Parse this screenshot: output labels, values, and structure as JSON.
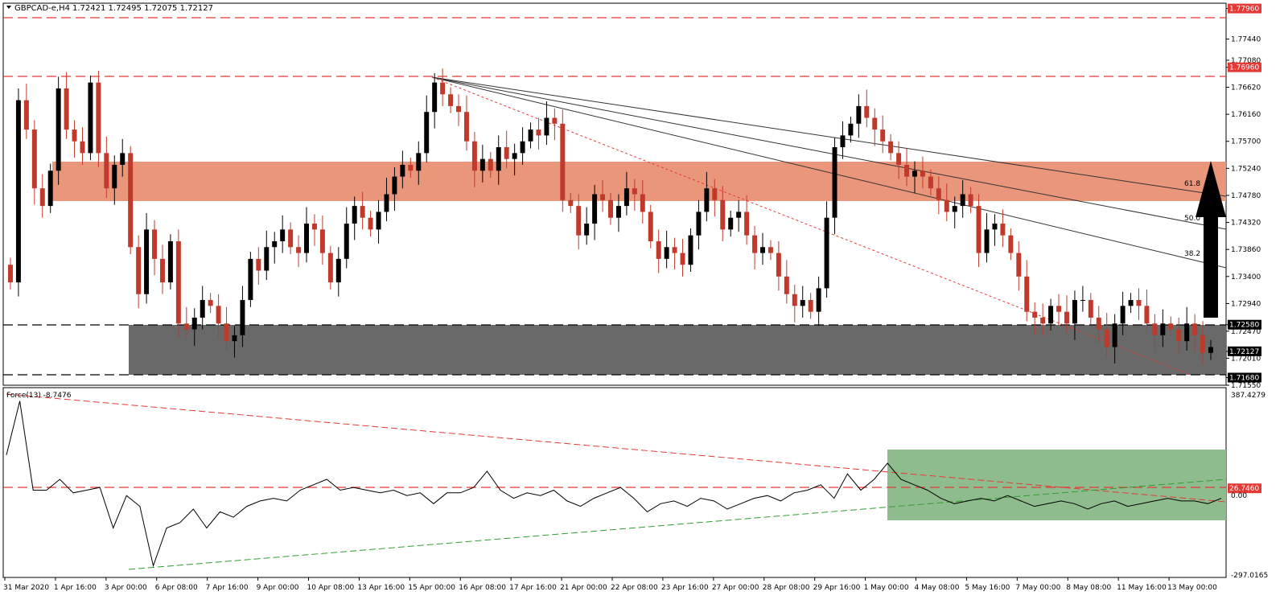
{
  "header": {
    "symbol_label": "GBPCAD-e,H4",
    "ohlc": "1.72421 1.72495 1.72075 1.72127"
  },
  "indicator": {
    "label": "Force(13) -8.7476"
  },
  "colors": {
    "bull": "#000000",
    "bear": "#c0392b",
    "resistance_zone": "#e9967a",
    "support_zone": "#696969",
    "level_line": "#e53935",
    "force_zone": "#8fbc8f",
    "force_trend_up": "#2e9e2e"
  },
  "chart_data": [
    {
      "type": "candlestick",
      "ylim": [
        1.7155,
        1.7805
      ],
      "price_ticks": [
        "1.77960",
        "1.77440",
        "1.77080",
        "1.76960",
        "1.76620",
        "1.76160",
        "1.75700",
        "1.75240",
        "1.74780",
        "1.74320",
        "1.73860",
        "1.73400",
        "1.72940",
        "1.72580",
        "1.72470",
        "1.72127",
        "1.72010",
        "1.71680",
        "1.71550"
      ],
      "x_labels": [
        "31 Mar 2020",
        "1 Apr 16:00",
        "3 Apr 00:00",
        "6 Apr 08:00",
        "7 Apr 16:00",
        "9 Apr 00:00",
        "10 Apr 08:00",
        "13 Apr 16:00",
        "15 Apr 00:00",
        "16 Apr 08:00",
        "17 Apr 16:00",
        "21 Apr 00:00",
        "22 Apr 08:00",
        "23 Apr 16:00",
        "27 Apr 00:00",
        "28 Apr 08:00",
        "29 Apr 16:00",
        "1 May 00:00",
        "4 May 08:00",
        "5 May 16:00",
        "7 May 00:00",
        "8 May 08:00",
        "11 May 16:00",
        "13 May 00:00"
      ],
      "levels": [
        {
          "label": "1.77960",
          "value": 1.7796
        },
        {
          "label": "1.76960",
          "value": 1.7696
        },
        {
          "label": "1.72580",
          "value": 1.7258
        },
        {
          "label": "1.71680",
          "value": 1.7168
        }
      ],
      "current_price": {
        "label": "1.72127",
        "value": 1.72127
      },
      "resistance_zone": [
        1.7478,
        1.7551
      ],
      "support_zone": [
        1.7168,
        1.7258
      ],
      "fib_labels": [
        "61.8",
        "50.0",
        "38.2"
      ],
      "closes": [
        1.733,
        1.764,
        1.759,
        1.749,
        1.746,
        1.752,
        1.766,
        1.759,
        1.757,
        1.755,
        1.767,
        1.755,
        1.749,
        1.753,
        1.755,
        1.739,
        1.731,
        1.742,
        1.737,
        1.733,
        1.74,
        1.726,
        1.725,
        1.727,
        1.73,
        1.729,
        1.726,
        1.723,
        1.724,
        1.73,
        1.737,
        1.735,
        1.739,
        1.74,
        1.742,
        1.739,
        1.738,
        1.743,
        1.742,
        1.738,
        1.733,
        1.737,
        1.743,
        1.746,
        1.744,
        1.742,
        1.745,
        1.748,
        1.751,
        1.753,
        1.752,
        1.755,
        1.762,
        1.767,
        1.765,
        1.763,
        1.762,
        1.757,
        1.752,
        1.754,
        1.752,
        1.756,
        1.754,
        1.755,
        1.757,
        1.759,
        1.758,
        1.761,
        1.76,
        1.747,
        1.746,
        1.741,
        1.743,
        1.748,
        1.747,
        1.744,
        1.746,
        1.749,
        1.748,
        1.745,
        1.74,
        1.737,
        1.739,
        1.738,
        1.736,
        1.741,
        1.745,
        1.749,
        1.747,
        1.742,
        1.744,
        1.745,
        1.741,
        1.738,
        1.739,
        1.738,
        1.734,
        1.731,
        1.729,
        1.73,
        1.728,
        1.732,
        1.744,
        1.756,
        1.758,
        1.76,
        1.763,
        1.761,
        1.759,
        1.757,
        1.755,
        1.753,
        1.751,
        1.752,
        1.751,
        1.749,
        1.747,
        1.745,
        1.746,
        1.748,
        1.746,
        1.738,
        1.742,
        1.743,
        1.741,
        1.738,
        1.734,
        1.728,
        1.727,
        1.726,
        1.729,
        1.728,
        1.726,
        1.73,
        1.73,
        1.727,
        1.725,
        1.722,
        1.726,
        1.729,
        1.73,
        1.729,
        1.726,
        1.724,
        1.726,
        1.725,
        1.723,
        1.726,
        1.724,
        1.721,
        1.722
      ]
    },
    {
      "type": "line",
      "name": "Force(13)",
      "ylim": [
        -297.0,
        387.4279
      ],
      "y_ticks": [
        "387.4279",
        "26.7460",
        "0.00",
        "-297.0165"
      ],
      "level": {
        "label": "26.7460",
        "value": 26.746
      },
      "values": [
        150,
        350,
        20,
        20,
        60,
        10,
        20,
        30,
        -120,
        0,
        -40,
        -260,
        -120,
        -100,
        -50,
        -120,
        -60,
        -80,
        -40,
        -20,
        -10,
        -20,
        20,
        40,
        60,
        20,
        30,
        20,
        10,
        20,
        0,
        10,
        -30,
        10,
        10,
        30,
        90,
        20,
        -10,
        10,
        0,
        20,
        -20,
        -40,
        -10,
        10,
        30,
        -10,
        -60,
        -30,
        -20,
        -40,
        -10,
        -20,
        -50,
        -30,
        -10,
        0,
        -20,
        10,
        20,
        40,
        -10,
        80,
        20,
        60,
        120,
        60,
        40,
        20,
        -10,
        -30,
        -20,
        -10,
        -20,
        0,
        -20,
        -40,
        -30,
        -20,
        -30,
        -50,
        -30,
        -20,
        -40,
        -30,
        -20,
        -10,
        -20,
        -20,
        -30,
        -10
      ]
    }
  ],
  "x_axis_labels": [
    "31 Mar 2020",
    "1 Apr 16:00",
    "3 Apr 00:00",
    "6 Apr 08:00",
    "7 Apr 16:00",
    "9 Apr 00:00",
    "10 Apr 08:00",
    "13 Apr 16:00",
    "15 Apr 00:00",
    "16 Apr 08:00",
    "17 Apr 16:00",
    "21 Apr 00:00",
    "22 Apr 08:00",
    "23 Apr 16:00",
    "27 Apr 00:00",
    "28 Apr 08:00",
    "29 Apr 16:00",
    "1 May 00:00",
    "4 May 08:00",
    "5 May 16:00",
    "7 May 00:00",
    "8 May 08:00",
    "11 May 16:00",
    "13 May 00:00"
  ]
}
